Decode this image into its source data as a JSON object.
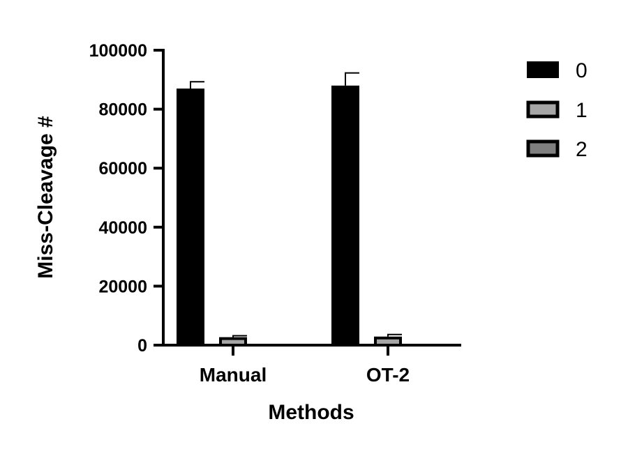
{
  "chart_data": {
    "type": "bar",
    "title": "",
    "xlabel": "Methods",
    "ylabel": "Miss-Cleavage #",
    "categories": [
      "Manual",
      "OT-2"
    ],
    "ylim": [
      0,
      100000
    ],
    "yticks": [
      0,
      20000,
      40000,
      60000,
      80000,
      100000
    ],
    "ytick_labels": [
      "0",
      "20000",
      "40000",
      "60000",
      "80000",
      "100000"
    ],
    "grid": false,
    "legend_position": "top-right",
    "series": [
      {
        "name": "0",
        "values": [
          87000,
          88000
        ],
        "errors": [
          2300,
          4300
        ],
        "color": "#000000"
      },
      {
        "name": "1",
        "values": [
          2700,
          2900
        ],
        "errors": [
          500,
          700
        ],
        "color": "#a6a6a6"
      },
      {
        "name": "2",
        "values": [
          0,
          0
        ],
        "errors": [
          0,
          0
        ],
        "color": "#7f7f7f"
      }
    ]
  }
}
